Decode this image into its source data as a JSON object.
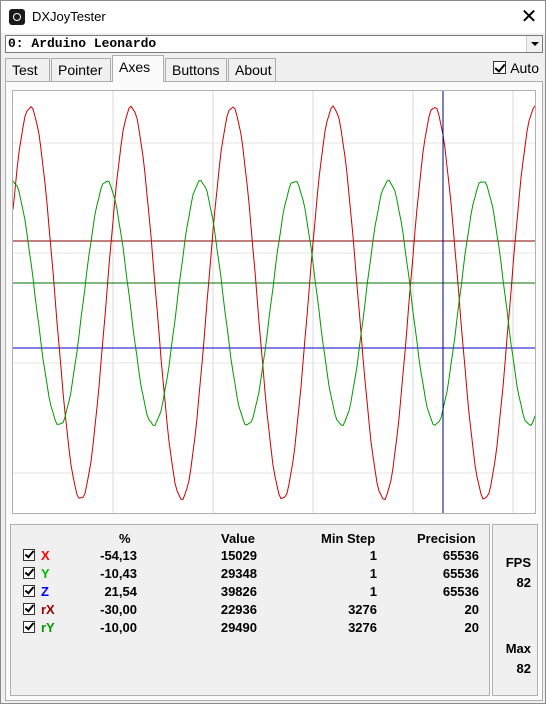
{
  "window": {
    "title": "DXJoyTester",
    "close_glyph": "✕"
  },
  "device": {
    "selected": "0: Arduino Leonardo"
  },
  "tabs": [
    {
      "label": "Test",
      "active": false
    },
    {
      "label": "Pointer",
      "active": false
    },
    {
      "label": "Axes",
      "active": true
    },
    {
      "label": "Buttons",
      "active": false
    },
    {
      "label": "About",
      "active": false
    }
  ],
  "auto": {
    "label": "Auto",
    "checked": true
  },
  "colors": {
    "X": "#cc0000",
    "Y": "#009900",
    "Z": "#0000cc",
    "rX": "#800000",
    "rY": "#007000",
    "cursor": "#000080",
    "grid": "#d8d8d8"
  },
  "stats": {
    "headers": {
      "percent": "%",
      "value": "Value",
      "min_step": "Min Step",
      "precision": "Precision"
    },
    "rows": [
      {
        "axis": "X",
        "color": "#ff0000",
        "checked": true,
        "percent": "-54,13",
        "value": "15029",
        "min_step": "1",
        "precision": "65536"
      },
      {
        "axis": "Y",
        "color": "#00bb00",
        "checked": true,
        "percent": "-10,43",
        "value": "29348",
        "min_step": "1",
        "precision": "65536"
      },
      {
        "axis": "Z",
        "color": "#0000ff",
        "checked": true,
        "percent": "21,54",
        "value": "39826",
        "min_step": "1",
        "precision": "65536"
      },
      {
        "axis": "rX",
        "color": "#990000",
        "checked": true,
        "percent": "-30,00",
        "value": "22936",
        "min_step": "3276",
        "precision": "20"
      },
      {
        "axis": "rY",
        "color": "#009900",
        "checked": true,
        "percent": "-10,00",
        "value": "29490",
        "min_step": "3276",
        "precision": "20"
      }
    ]
  },
  "fps": {
    "label": "FPS",
    "value": "82",
    "max_label": "Max",
    "max_value": "82"
  }
}
